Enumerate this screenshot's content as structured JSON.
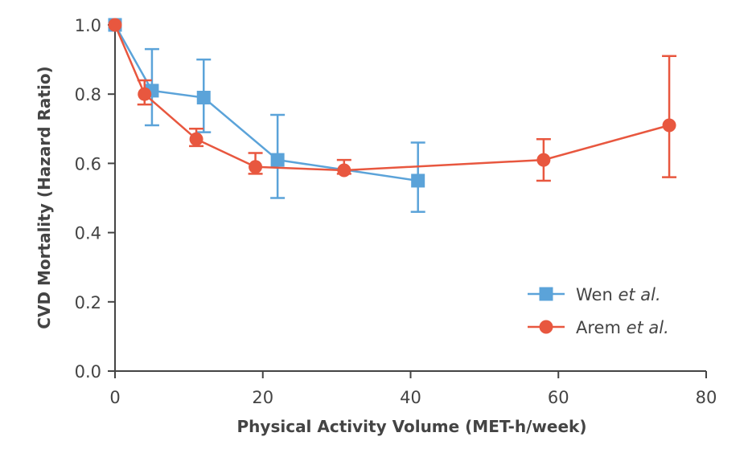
{
  "chart_data": {
    "type": "line",
    "title": "",
    "xlabel": "Physical Activity Volume (MET-h/week)",
    "ylabel": "CVD Mortality (Hazard Ratio)",
    "xlim": [
      0,
      80
    ],
    "ylim": [
      0,
      1.0
    ],
    "xticks": [
      0,
      20,
      40,
      60,
      80
    ],
    "xtick_labels": [
      "0",
      "20",
      "40",
      "60",
      "80"
    ],
    "yticks": [
      0,
      0.2,
      0.4,
      0.6,
      0.8,
      1.0
    ],
    "ytick_labels": [
      "0.0",
      "0.2",
      "0.4",
      "0.6",
      "0.8",
      "1.0"
    ],
    "grid": false,
    "legend_position": "bottom-right",
    "series": [
      {
        "name": "Wen",
        "name_suffix": "et al.",
        "marker": "square",
        "color": "#5ba3d9",
        "points": [
          {
            "x": 0,
            "y": 1.0,
            "lo": null,
            "hi": null
          },
          {
            "x": 5,
            "y": 0.81,
            "lo": 0.71,
            "hi": 0.93
          },
          {
            "x": 12,
            "y": 0.79,
            "lo": 0.69,
            "hi": 0.9
          },
          {
            "x": 22,
            "y": 0.61,
            "lo": 0.5,
            "hi": 0.74
          },
          {
            "x": 41,
            "y": 0.55,
            "lo": 0.46,
            "hi": 0.66
          }
        ]
      },
      {
        "name": "Arem",
        "name_suffix": "et al.",
        "marker": "circle",
        "color": "#e8573f",
        "points": [
          {
            "x": 0,
            "y": 1.0,
            "lo": null,
            "hi": null
          },
          {
            "x": 4,
            "y": 0.8,
            "lo": 0.77,
            "hi": 0.84
          },
          {
            "x": 11,
            "y": 0.67,
            "lo": 0.65,
            "hi": 0.7
          },
          {
            "x": 19,
            "y": 0.59,
            "lo": 0.57,
            "hi": 0.63
          },
          {
            "x": 31,
            "y": 0.58,
            "lo": 0.57,
            "hi": 0.61
          },
          {
            "x": 58,
            "y": 0.61,
            "lo": 0.55,
            "hi": 0.67
          },
          {
            "x": 75,
            "y": 0.71,
            "lo": 0.56,
            "hi": 0.91
          }
        ]
      }
    ]
  }
}
